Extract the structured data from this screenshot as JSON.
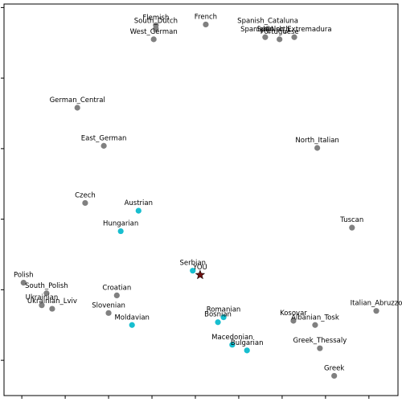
{
  "chart_data": {
    "type": "scatter",
    "xlim": [
      -0.41,
      8.67
    ],
    "ylim": [
      -0.5,
      5.05
    ],
    "xticks": [
      0,
      1,
      2,
      3,
      4,
      5,
      6,
      7,
      8
    ],
    "yticks": [
      0,
      1,
      2,
      3,
      4,
      5
    ],
    "series": [
      {
        "color": "#808080",
        "marker": "circle",
        "labels": [
          "Flemish",
          "South_Dutch",
          "West_German",
          "French",
          "Spanish_Cataluna",
          "Spanish_North",
          "Portuguese",
          "Spanish_Extremadura",
          "German_Central",
          "East_German",
          "North_Italian",
          "Czech",
          "Tuscan",
          "Polish",
          "South_Polish",
          "Ukrainian",
          "Ukrainian_Lviv",
          "Croatian",
          "Slovenian",
          "Kosovar",
          "Albanian_Tosk",
          "Italian_Abruzzo",
          "Greek_Thessaly",
          "Greek"
        ],
        "x": [
          3.09,
          3.09,
          3.04,
          4.24,
          5.67,
          5.61,
          5.94,
          6.28,
          1.28,
          1.89,
          6.81,
          1.46,
          7.61,
          0.04,
          0.57,
          0.46,
          0.7,
          2.19,
          2.0,
          6.26,
          6.76,
          8.17,
          6.87,
          7.2
        ],
        "values": [
          4.75,
          4.7,
          4.55,
          4.76,
          4.7,
          4.58,
          4.55,
          4.58,
          3.58,
          3.04,
          3.01,
          2.23,
          1.88,
          1.1,
          0.95,
          0.78,
          0.73,
          0.92,
          0.67,
          0.56,
          0.5,
          0.7,
          0.17,
          -0.22
        ]
      },
      {
        "color": "#17becf",
        "marker": "circle",
        "labels": [
          "Austrian",
          "Hungarian",
          "Serbian",
          "Romanian",
          "Bosnian",
          "Moldavian",
          "Macedonian",
          "Bulgarian"
        ],
        "x": [
          2.69,
          2.28,
          3.94,
          4.65,
          4.52,
          2.54,
          4.85,
          5.19
        ],
        "values": [
          2.12,
          1.83,
          1.27,
          0.61,
          0.54,
          0.5,
          0.22,
          0.14
        ]
      },
      {
        "color": "#6b0f0f",
        "marker": "star",
        "labels": [
          "YOU"
        ],
        "x": [
          4.11
        ],
        "values": [
          1.21
        ]
      }
    ]
  }
}
